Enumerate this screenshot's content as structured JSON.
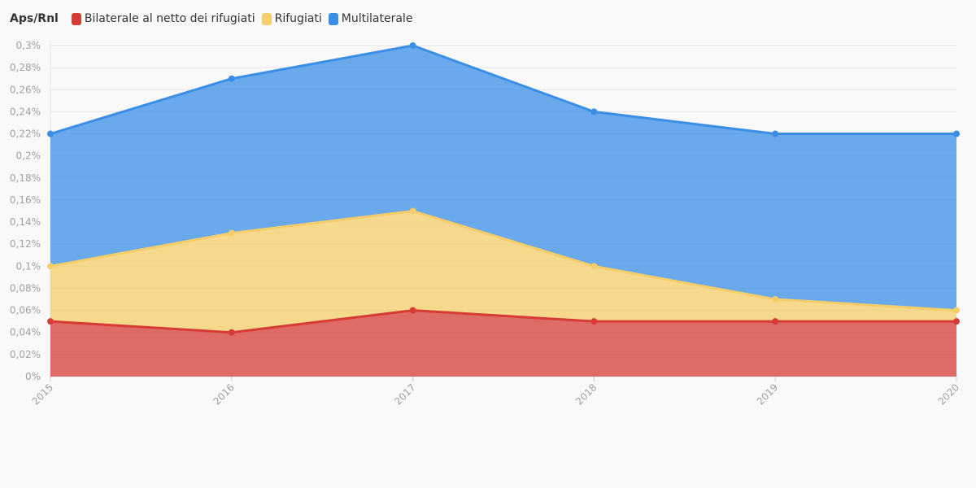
{
  "chart_data": {
    "type": "area",
    "stacked": true,
    "title": "Aps/Rnl",
    "x": [
      "2015",
      "2016",
      "2017",
      "2018",
      "2019",
      "2020"
    ],
    "series": [
      {
        "name": "Bilaterale al netto dei rifugiati",
        "color": "#d63b36",
        "values": [
          0.05,
          0.04,
          0.06,
          0.05,
          0.05,
          0.05
        ]
      },
      {
        "name": "Rifugiati",
        "color": "#f5ce6a",
        "values": [
          0.05,
          0.09,
          0.09,
          0.05,
          0.02,
          0.01
        ]
      },
      {
        "name": "Multilaterale",
        "color": "#3a8ee6",
        "values": [
          0.12,
          0.14,
          0.15,
          0.14,
          0.15,
          0.16
        ]
      }
    ],
    "ylim": [
      0,
      0.3
    ],
    "yticks": [
      "0%",
      "0,02%",
      "0,04%",
      "0,06%",
      "0,08%",
      "0,1%",
      "0,12%",
      "0,14%",
      "0,16%",
      "0,18%",
      "0,2%",
      "0,22%",
      "0,24%",
      "0,26%",
      "0,28%",
      "0,3%"
    ],
    "grid": true,
    "legend_position": "top-left"
  }
}
